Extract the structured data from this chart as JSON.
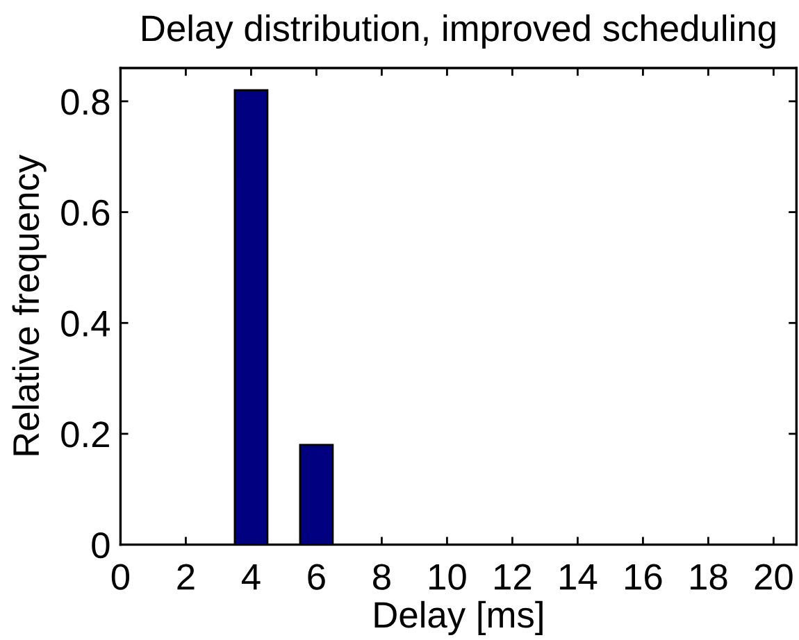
{
  "chart_data": {
    "type": "bar",
    "title": "Delay distribution, improved scheduling",
    "xlabel": "Delay [ms]",
    "ylabel": "Relative frequency",
    "x": [
      4,
      6
    ],
    "values": [
      0.82,
      0.18
    ],
    "color": "#000080",
    "xlim": [
      0,
      20.7
    ],
    "xticks": [
      0,
      2,
      4,
      6,
      8,
      10,
      12,
      14,
      16,
      18,
      20
    ],
    "ylim": [
      0,
      0.86
    ],
    "yticks": [
      0,
      0.2,
      0.4,
      0.6,
      0.8
    ]
  }
}
